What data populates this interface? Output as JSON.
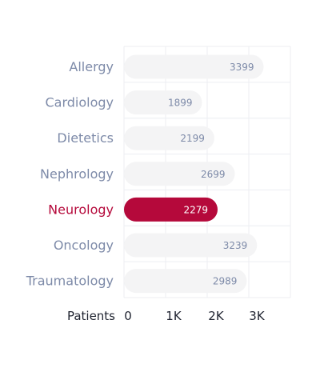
{
  "chart_data": {
    "type": "bar",
    "orientation": "horizontal",
    "categories": [
      "Allergy",
      "Cardiology",
      "Dietetics",
      "Nephrology",
      "Neurology",
      "Oncology",
      "Traumatology"
    ],
    "values": [
      3399,
      1899,
      2199,
      2699,
      2279,
      3239,
      2989
    ],
    "highlighted_category": "Neurology",
    "xlabel": "Patients",
    "x_ticks": [
      {
        "value": 0,
        "label": "0"
      },
      {
        "value": 1000,
        "label": "1K"
      },
      {
        "value": 2000,
        "label": "2K"
      },
      {
        "value": 3000,
        "label": "3K"
      }
    ],
    "xlim": [
      0,
      4000
    ],
    "grid": true,
    "colors": {
      "bar": "#f4f4f5",
      "bar_highlight": "#b5093b",
      "label": "#7d8aa8",
      "label_highlight": "#b5093b",
      "value_text": "#7d8aa8",
      "value_text_highlight": "#ffffff",
      "grid": "#eceef2"
    }
  }
}
